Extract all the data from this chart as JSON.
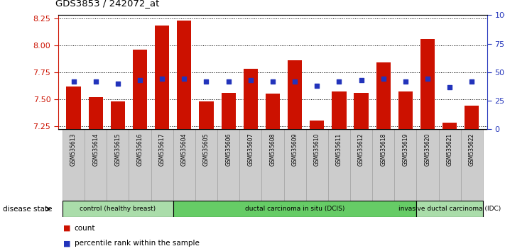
{
  "title": "GDS3853 / 242072_at",
  "samples": [
    "GSM535613",
    "GSM535614",
    "GSM535615",
    "GSM535616",
    "GSM535617",
    "GSM535604",
    "GSM535605",
    "GSM535606",
    "GSM535607",
    "GSM535608",
    "GSM535609",
    "GSM535610",
    "GSM535611",
    "GSM535612",
    "GSM535618",
    "GSM535619",
    "GSM535620",
    "GSM535621",
    "GSM535622"
  ],
  "counts": [
    7.62,
    7.52,
    7.48,
    7.96,
    8.18,
    8.23,
    7.48,
    7.56,
    7.78,
    7.55,
    7.86,
    7.3,
    7.57,
    7.56,
    7.84,
    7.57,
    8.06,
    7.28,
    7.44
  ],
  "percentiles": [
    42,
    42,
    40,
    43,
    44,
    44,
    42,
    42,
    43,
    42,
    42,
    38,
    42,
    43,
    44,
    42,
    44,
    37,
    42
  ],
  "ylim_left": [
    7.22,
    8.28
  ],
  "ylim_right": [
    0,
    100
  ],
  "yticks_left": [
    7.25,
    7.5,
    7.75,
    8.0,
    8.25
  ],
  "yticks_right": [
    0,
    25,
    50,
    75,
    100
  ],
  "bar_color": "#cc1100",
  "dot_color": "#2233bb",
  "group_labels": [
    "control (healthy breast)",
    "ductal carcinoma in situ (DCIS)",
    "invasive ductal carcinoma (IDC)"
  ],
  "group_ranges": [
    [
      0,
      5
    ],
    [
      5,
      16
    ],
    [
      16,
      19
    ]
  ],
  "group_colors": [
    "#aaddaa",
    "#66cc66",
    "#aaddaa"
  ],
  "disease_state_label": "disease state",
  "legend_count_label": "count",
  "legend_percentile_label": "percentile rank within the sample",
  "sample_bg_color": "#cccccc",
  "tick_color_left": "#cc1100",
  "tick_color_right": "#2233bb",
  "fig_width": 7.11,
  "fig_height": 3.54,
  "dpi": 100
}
